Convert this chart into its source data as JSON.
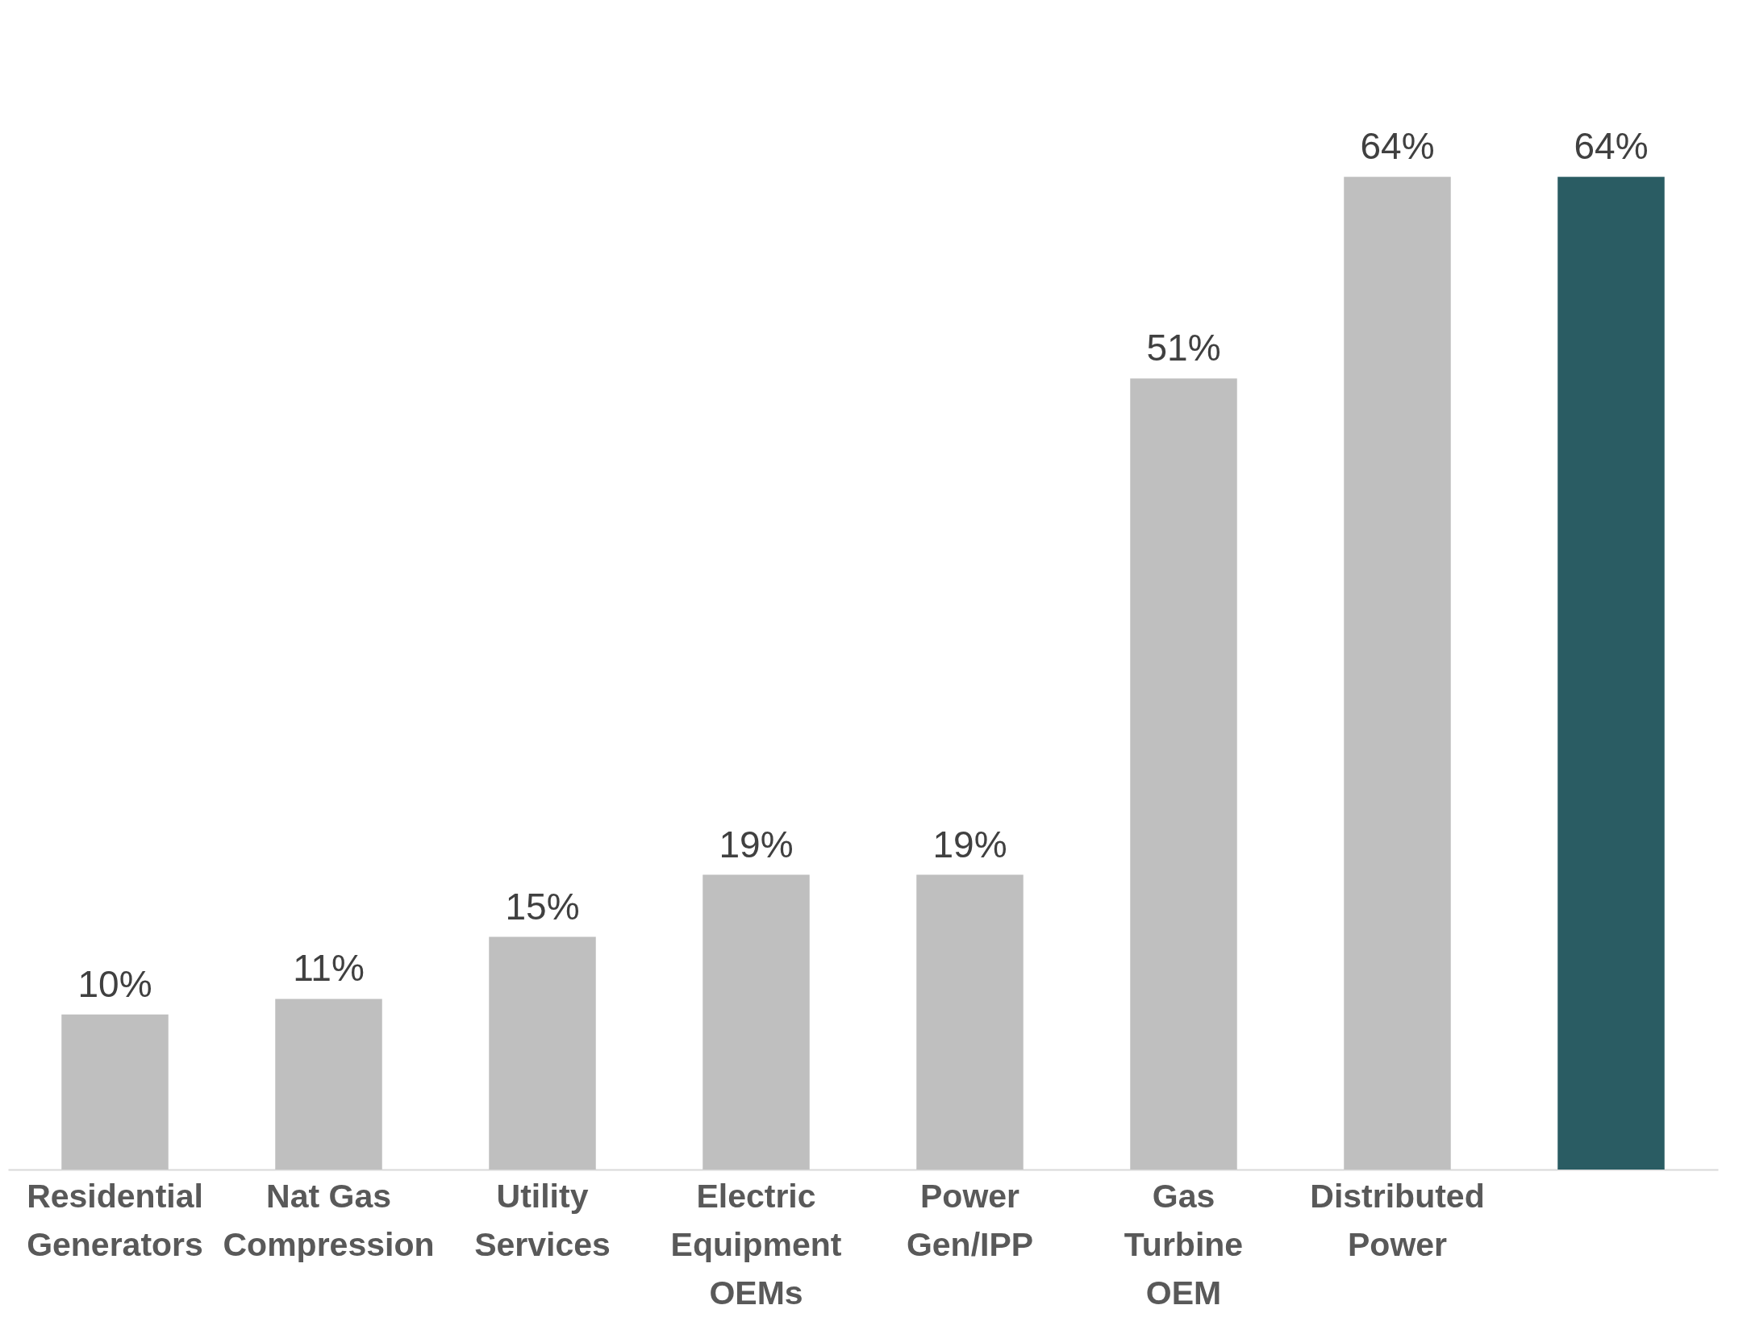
{
  "chart_data": {
    "type": "bar",
    "categories": [
      "Residential Generators",
      "Nat Gas Compression",
      "Utility Services",
      "Electric Equipment OEMs",
      "Power Gen/IPP",
      "Gas Turbine OEM",
      "Distributed Power",
      null
    ],
    "values": [
      10,
      11,
      15,
      19,
      19,
      51,
      64,
      64
    ],
    "value_labels": [
      "10%",
      "11%",
      "15%",
      "19%",
      "19%",
      "51%",
      "64%",
      "64%"
    ],
    "colors": [
      "#bfbfbf",
      "#bfbfbf",
      "#bfbfbf",
      "#bfbfbf",
      "#bfbfbf",
      "#bfbfbf",
      "#bfbfbf",
      "#2a5c63"
    ],
    "grid": false
  }
}
